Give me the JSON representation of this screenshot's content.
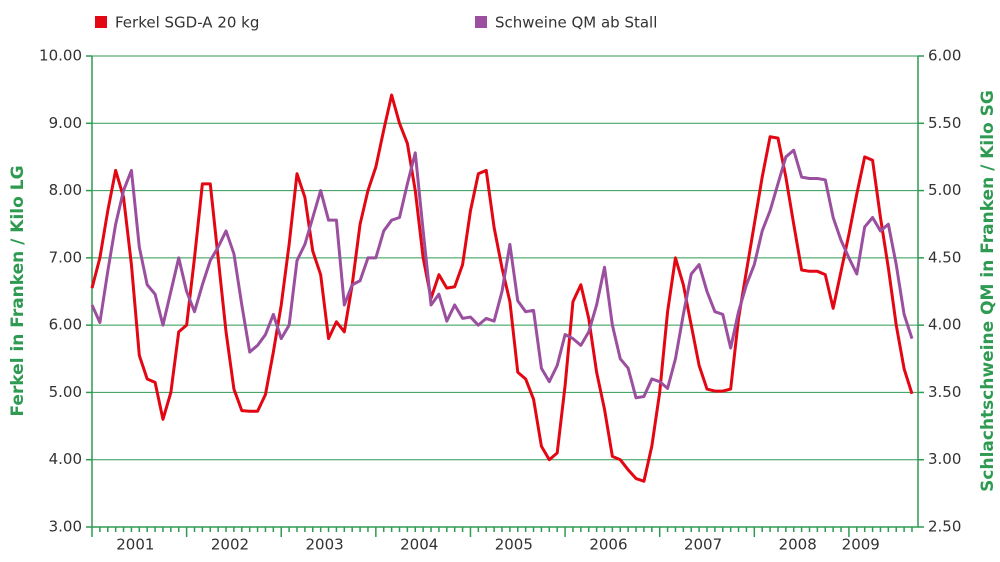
{
  "chart_data": {
    "type": "line",
    "y_label": "Ferkel in Franken / Kilo LG",
    "y2_label": "Schlachtschweine QM  in Franken / Kilo SG",
    "categories": [
      null,
      null,
      null,
      null,
      null,
      null,
      "2001",
      null,
      null,
      null,
      null,
      null,
      null,
      null,
      null,
      null,
      null,
      null,
      "2002",
      null,
      null,
      null,
      null,
      null,
      null,
      null,
      null,
      null,
      null,
      null,
      "2003",
      null,
      null,
      null,
      null,
      null,
      null,
      null,
      null,
      null,
      null,
      null,
      "2004",
      null,
      null,
      null,
      null,
      null,
      null,
      null,
      null,
      null,
      null,
      null,
      "2005",
      null,
      null,
      null,
      null,
      null,
      null,
      null,
      null,
      null,
      null,
      null,
      "2006",
      null,
      null,
      null,
      null,
      null,
      null,
      null,
      null,
      null,
      null,
      null,
      "2007",
      null,
      null,
      null,
      null,
      null,
      null,
      null,
      null,
      null,
      null,
      null,
      "2008",
      null,
      null,
      null,
      null,
      null,
      null,
      null,
      "2009",
      null,
      null,
      null,
      null,
      null,
      null
    ],
    "series": [
      {
        "name": "Ferkel SGD-A 20 kg",
        "color": "#e30613",
        "axis": "y",
        "values": [
          6.55,
          7.0,
          7.7,
          8.3,
          7.9,
          6.9,
          5.55,
          5.2,
          5.15,
          4.6,
          5.0,
          5.9,
          6.0,
          7.0,
          8.1,
          8.1,
          7.0,
          5.9,
          5.05,
          4.73,
          4.72,
          4.72,
          4.97,
          5.6,
          6.3,
          7.2,
          8.25,
          7.9,
          7.1,
          6.75,
          5.8,
          6.05,
          5.9,
          6.6,
          7.5,
          8.0,
          8.35,
          8.9,
          9.42,
          9.0,
          8.7,
          8.0,
          7.0,
          6.4,
          6.75,
          6.55,
          6.57,
          6.9,
          7.7,
          8.25,
          8.3,
          7.45,
          6.85,
          6.35,
          5.3,
          5.2,
          4.9,
          4.2,
          4.0,
          4.1,
          5.1,
          6.35,
          6.6,
          6.1,
          5.3,
          4.75,
          4.05,
          4.0,
          3.85,
          3.72,
          3.68,
          4.2,
          5.0,
          6.2,
          7.0,
          6.6,
          6.0,
          5.4,
          5.05,
          5.02,
          5.02,
          5.05,
          6.1,
          6.8,
          7.5,
          8.2,
          8.8,
          8.78,
          8.2,
          7.5,
          6.82,
          6.8,
          6.8,
          6.75,
          6.25,
          6.8,
          7.35,
          7.95,
          8.5,
          8.45,
          7.6,
          6.85,
          6.0,
          5.35,
          4.98
        ]
      },
      {
        "name": "Schweine QM ab Stall",
        "color": "#9b4f9f",
        "axis": "y2",
        "values": [
          4.15,
          4.02,
          4.4,
          4.75,
          5.0,
          5.15,
          4.58,
          4.3,
          4.23,
          4.0,
          4.25,
          4.5,
          4.25,
          4.1,
          4.3,
          4.48,
          4.58,
          4.7,
          4.53,
          4.15,
          3.8,
          3.85,
          3.93,
          4.08,
          3.9,
          4.0,
          4.48,
          4.6,
          4.8,
          5.0,
          4.78,
          4.78,
          4.15,
          4.3,
          4.33,
          4.5,
          4.5,
          4.7,
          4.78,
          4.8,
          5.05,
          5.28,
          4.7,
          4.15,
          4.23,
          4.03,
          4.15,
          4.05,
          4.06,
          4.0,
          4.05,
          4.03,
          4.25,
          4.6,
          4.18,
          4.1,
          4.11,
          3.68,
          3.58,
          3.7,
          3.93,
          3.9,
          3.85,
          3.95,
          4.15,
          4.43,
          4.0,
          3.75,
          3.68,
          3.46,
          3.47,
          3.6,
          3.58,
          3.53,
          3.75,
          4.08,
          4.38,
          4.45,
          4.25,
          4.1,
          4.08,
          3.83,
          4.1,
          4.3,
          4.45,
          4.7,
          4.85,
          5.05,
          5.25,
          5.3,
          5.1,
          5.09,
          5.09,
          5.08,
          4.8,
          4.63,
          4.5,
          4.38,
          4.73,
          4.8,
          4.7,
          4.75,
          4.45,
          4.08,
          3.9
        ]
      }
    ],
    "ylim": [
      3,
      10
    ],
    "yticks": [
      {
        "value": 3,
        "label": "3.00"
      },
      {
        "value": 4,
        "label": "4.00"
      },
      {
        "value": 5,
        "label": "5.00"
      },
      {
        "value": 6,
        "label": "6.00"
      },
      {
        "value": 7,
        "label": "7.00"
      },
      {
        "value": 8,
        "label": "8.00"
      },
      {
        "value": 9,
        "label": "9.00"
      },
      {
        "value": 10,
        "label": "10.00"
      }
    ],
    "y2lim": [
      2.5,
      6
    ],
    "y2ticks": [
      {
        "value": 2.5,
        "label": "2.50"
      },
      {
        "value": 3,
        "label": "3.00"
      },
      {
        "value": 3.5,
        "label": "3.50"
      },
      {
        "value": 4,
        "label": "4.00"
      },
      {
        "value": 4.5,
        "label": "4.50"
      },
      {
        "value": 5,
        "label": "5.00"
      },
      {
        "value": 5.5,
        "label": "5.50"
      },
      {
        "value": 6,
        "label": "6.00"
      }
    ],
    "grid": true
  }
}
